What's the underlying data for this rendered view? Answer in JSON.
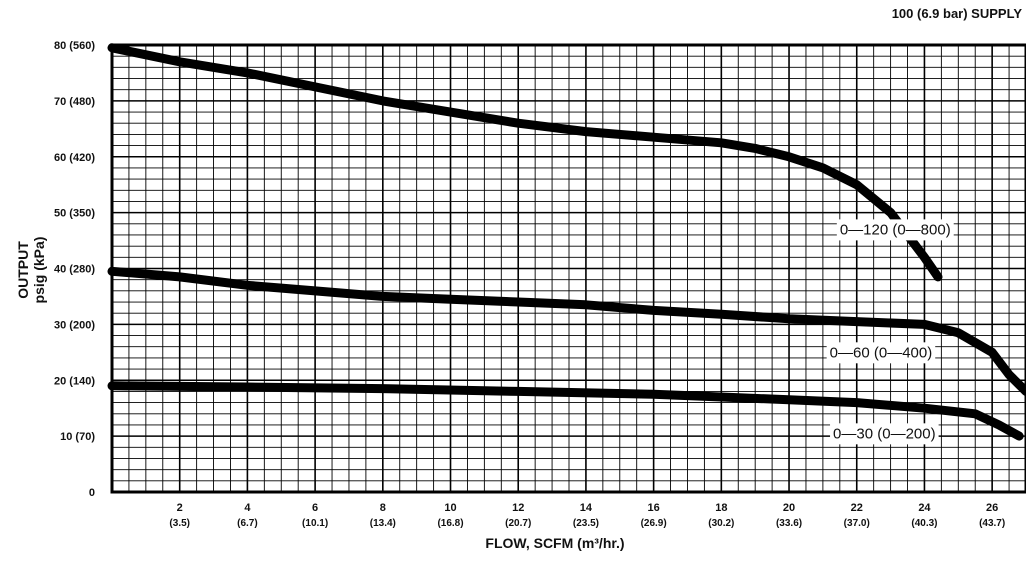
{
  "chart_data": {
    "type": "line",
    "title": "100 (6.9 bar) SUPPLY",
    "xlabel": "FLOW, SCFM (m³/hr.)",
    "ylabel_line1": "OUTPUT",
    "ylabel_line2": "psig (kPa)",
    "xlim": [
      0,
      27
    ],
    "ylim": [
      0,
      80
    ],
    "grid": true,
    "x_ticks": [
      {
        "value": 2,
        "label": "2",
        "sublabel": "(3.5)"
      },
      {
        "value": 4,
        "label": "4",
        "sublabel": "(6.7)"
      },
      {
        "value": 6,
        "label": "6",
        "sublabel": "(10.1)"
      },
      {
        "value": 8,
        "label": "8",
        "sublabel": "(13.4)"
      },
      {
        "value": 10,
        "label": "10",
        "sublabel": "(16.8)"
      },
      {
        "value": 12,
        "label": "12",
        "sublabel": "(20.7)"
      },
      {
        "value": 14,
        "label": "14",
        "sublabel": "(23.5)"
      },
      {
        "value": 16,
        "label": "16",
        "sublabel": "(26.9)"
      },
      {
        "value": 18,
        "label": "18",
        "sublabel": "(30.2)"
      },
      {
        "value": 20,
        "label": "20",
        "sublabel": "(33.6)"
      },
      {
        "value": 22,
        "label": "22",
        "sublabel": "(37.0)"
      },
      {
        "value": 24,
        "label": "24",
        "sublabel": "(40.3)"
      },
      {
        "value": 26,
        "label": "26",
        "sublabel": "(43.7)"
      }
    ],
    "y_ticks": [
      {
        "value": 0,
        "label": "0"
      },
      {
        "value": 10,
        "label": "10  (70)"
      },
      {
        "value": 20,
        "label": "20 (140)"
      },
      {
        "value": 30,
        "label": "30 (200)"
      },
      {
        "value": 40,
        "label": "40 (280)"
      },
      {
        "value": 50,
        "label": "50 (350)"
      },
      {
        "value": 60,
        "label": "60 (420)"
      },
      {
        "value": 70,
        "label": "70 (480)"
      },
      {
        "value": 80,
        "label": "80 (560)"
      }
    ],
    "series": [
      {
        "name": "0—120 (0—800)",
        "label_at": [
          21.5,
          47
        ],
        "points": [
          [
            0,
            79.5
          ],
          [
            2,
            77
          ],
          [
            4,
            75
          ],
          [
            6,
            72.5
          ],
          [
            8,
            70
          ],
          [
            10,
            68
          ],
          [
            12,
            66
          ],
          [
            14,
            64.5
          ],
          [
            16,
            63.5
          ],
          [
            18,
            62.5
          ],
          [
            19,
            61.5
          ],
          [
            20,
            60
          ],
          [
            21,
            58
          ],
          [
            22,
            55
          ],
          [
            23,
            50
          ],
          [
            23.5,
            46
          ],
          [
            24,
            42
          ],
          [
            24.4,
            38.5
          ]
        ]
      },
      {
        "name": "0—60 (0—400)",
        "label_at": [
          21.2,
          25
        ],
        "points": [
          [
            0,
            39.5
          ],
          [
            2,
            38.5
          ],
          [
            4,
            37
          ],
          [
            6,
            36
          ],
          [
            8,
            35
          ],
          [
            10,
            34.5
          ],
          [
            12,
            34
          ],
          [
            14,
            33.5
          ],
          [
            16,
            32.5
          ],
          [
            18,
            31.8
          ],
          [
            20,
            31
          ],
          [
            22,
            30.5
          ],
          [
            24,
            30
          ],
          [
            25,
            28.5
          ],
          [
            26,
            25
          ],
          [
            26.5,
            21
          ],
          [
            27,
            18
          ]
        ]
      },
      {
        "name": "0—30 (0—200)",
        "label_at": [
          21.3,
          10.5
        ],
        "points": [
          [
            0,
            19
          ],
          [
            4,
            18.8
          ],
          [
            8,
            18.5
          ],
          [
            12,
            18
          ],
          [
            16,
            17.5
          ],
          [
            18,
            17
          ],
          [
            20,
            16.5
          ],
          [
            22,
            16
          ],
          [
            24,
            15
          ],
          [
            25.5,
            14
          ],
          [
            26.2,
            12
          ],
          [
            26.8,
            10
          ]
        ]
      }
    ]
  }
}
